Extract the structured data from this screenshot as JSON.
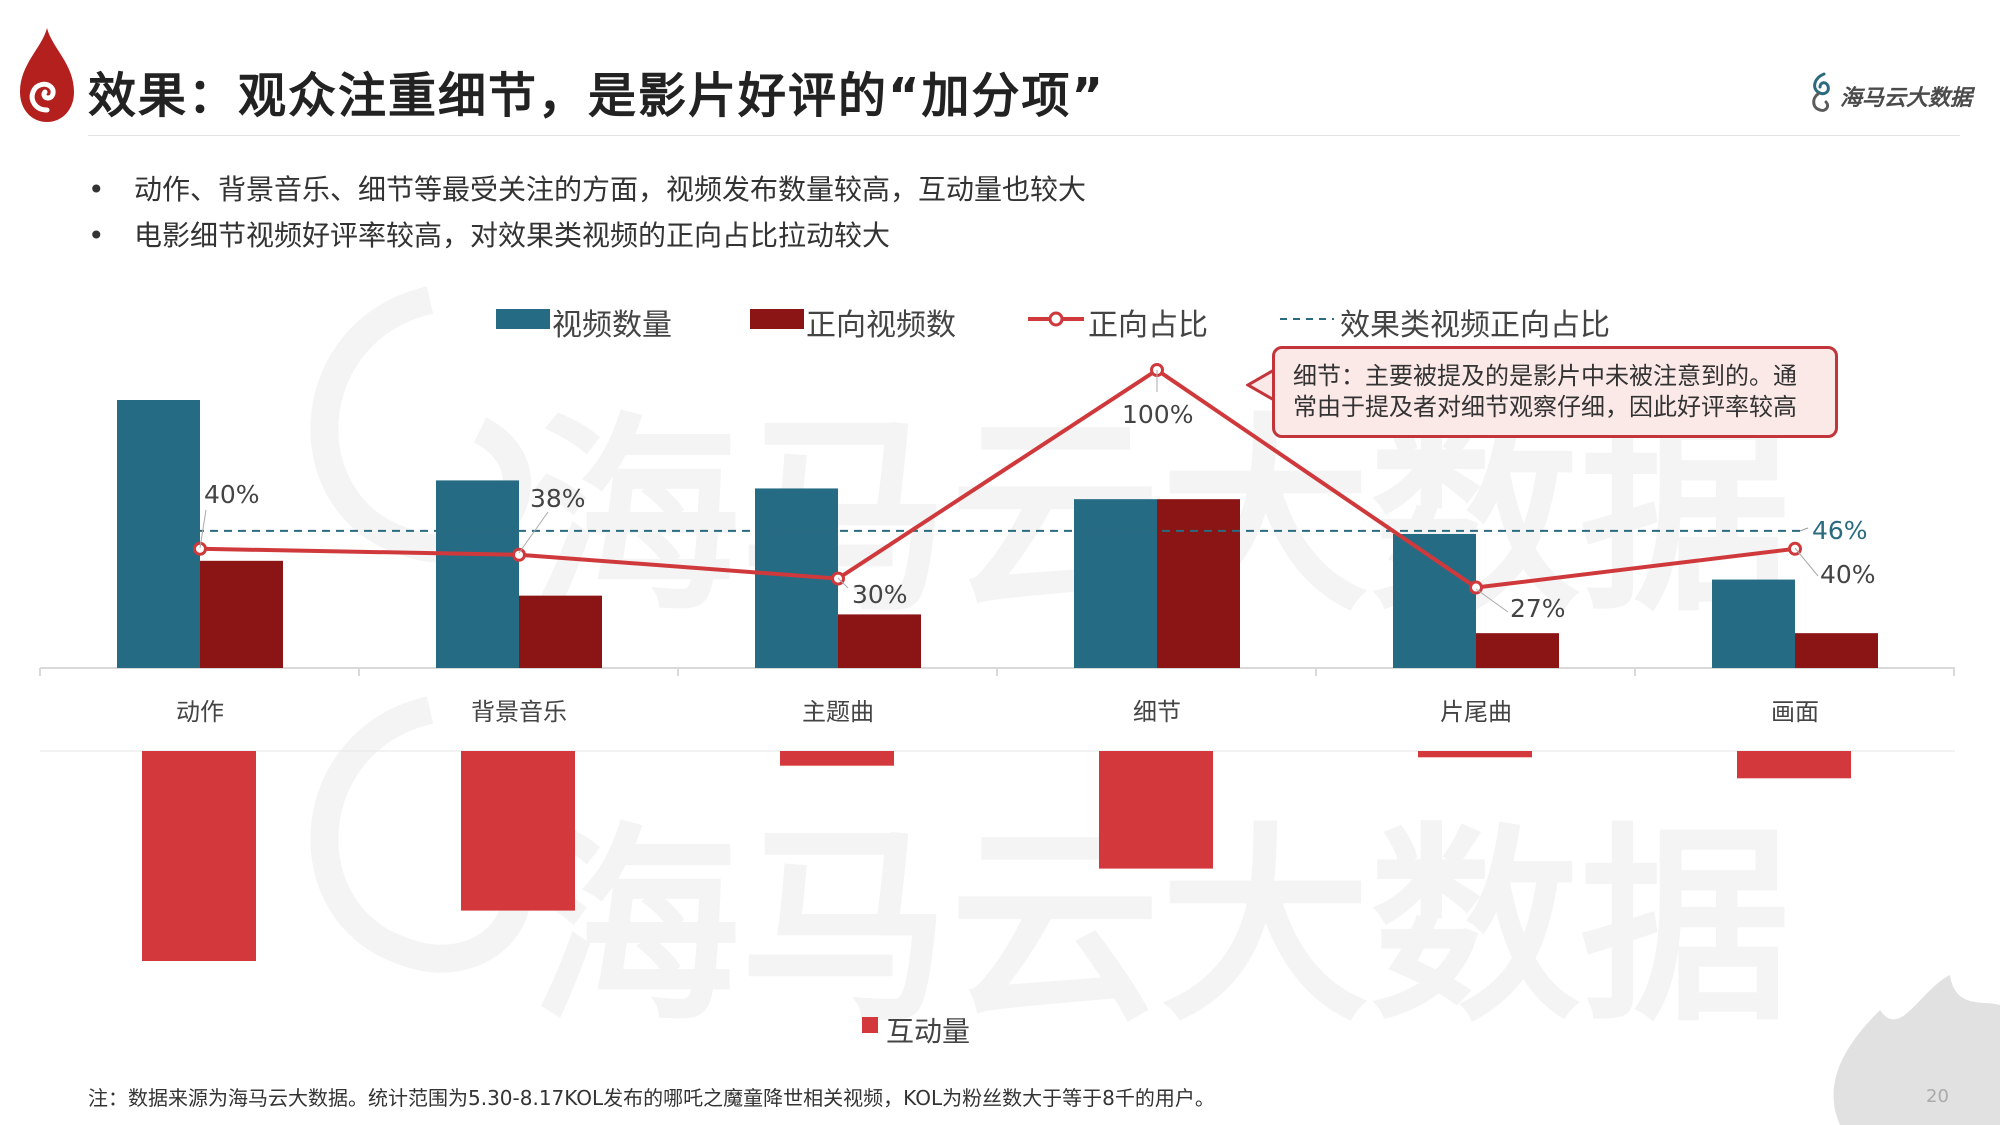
{
  "header": {
    "title": "效果：观众注重细节，是影片好评的“加分项”",
    "brand": "海马云大数据",
    "logo_icon": "flame-swirl-icon"
  },
  "bullets": [
    "动作、背景音乐、细节等最受关注的方面，视频发布数量较高，互动量也较大",
    "电影细节视频好评率较高，对效果类视频的正向占比拉动较大"
  ],
  "watermark": "海马云大数据",
  "colors": {
    "video_count": "#256b83",
    "positive_count": "#8b1515",
    "positive_ratio": "#d0393c",
    "average_line": "#2a6b80",
    "interaction": "#d3393c",
    "callout_border": "#c4343b",
    "callout_bg": "#fbe9e8"
  },
  "callout": "细节：主要被提及的是影片中未被注意到的。通常由于提及者对细节观察仔细，因此好评率较高",
  "chart_data": [
    {
      "type": "bar",
      "title": "",
      "categories": [
        "动作",
        "背景音乐",
        "主题曲",
        "细节",
        "片尾曲",
        "画面"
      ],
      "series": [
        {
          "name": "视频数量",
          "kind": "bar",
          "values": [
            100,
            70,
            67,
            63,
            50,
            33
          ]
        },
        {
          "name": "正向视频数",
          "kind": "bar",
          "values": [
            40,
            27,
            20,
            63,
            13,
            13
          ]
        },
        {
          "name": "正向占比",
          "kind": "line",
          "values": [
            40,
            38,
            30,
            100,
            27,
            40
          ],
          "labels": [
            "40%",
            "38%",
            "30%",
            "100%",
            "27%",
            "40%"
          ]
        },
        {
          "name": "效果类视频正向占比",
          "kind": "dashed-reference",
          "value": 46,
          "label": "46%"
        }
      ],
      "ylim_bars": [
        0,
        100
      ],
      "ylim_ratio": [
        0,
        100
      ],
      "legend": [
        "视频数量",
        "正向视频数",
        "正向占比",
        "效果类视频正向占比"
      ],
      "legend_position": "top"
    },
    {
      "type": "bar",
      "title": "",
      "orientation": "downward",
      "categories": [
        "动作",
        "背景音乐",
        "主题曲",
        "细节",
        "片尾曲",
        "画面"
      ],
      "series": [
        {
          "name": "互动量",
          "values": [
            100,
            76,
            7,
            56,
            3,
            13
          ]
        }
      ],
      "ylim": [
        0,
        100
      ],
      "legend": [
        "互动量"
      ],
      "legend_position": "bottom"
    }
  ],
  "footnote": "注：数据来源为海马云大数据。统计范围为5.30-8.17KOL发布的哪吒之魔童降世相关视频，KOL为粉丝数大于等于8千的用户。",
  "page_number": "20"
}
